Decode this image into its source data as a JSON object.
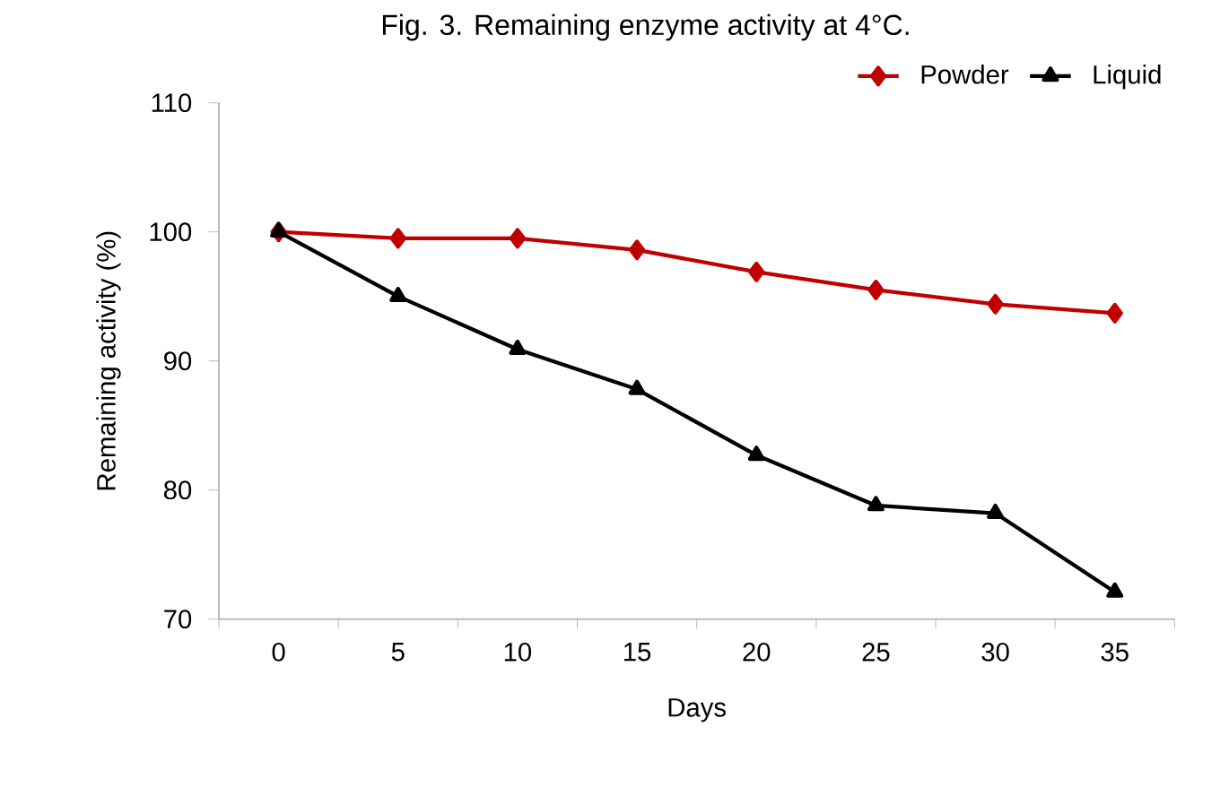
{
  "chart_data": {
    "type": "line",
    "title": "Fig. 3. Remaining enzyme activity at 4°C.",
    "xlabel": "Days",
    "ylabel": "Remaining activity (%)",
    "categories": [
      "0",
      "5",
      "10",
      "15",
      "20",
      "25",
      "30",
      "35"
    ],
    "series": [
      {
        "name": "Powder",
        "color": "#c00000",
        "marker": "diamond",
        "values": [
          100,
          99.5,
          99.5,
          98.6,
          96.9,
          95.5,
          94.4,
          93.7
        ]
      },
      {
        "name": "Liquid",
        "color": "#000000",
        "marker": "triangle",
        "values": [
          100,
          95.0,
          90.9,
          87.8,
          82.7,
          78.8,
          78.2,
          72.1
        ]
      }
    ],
    "ylim": [
      70,
      110
    ],
    "yticks": [
      70,
      80,
      90,
      100,
      110
    ],
    "legend": "top right",
    "grid": false,
    "line_style": "solid"
  }
}
